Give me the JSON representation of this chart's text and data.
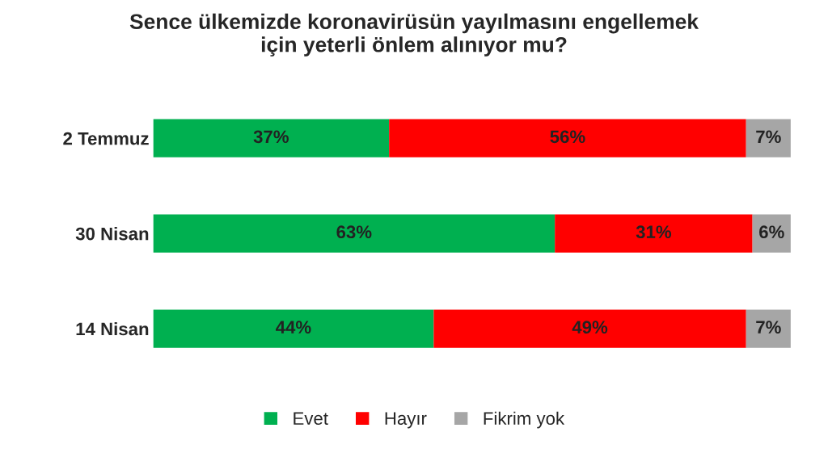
{
  "chart_data": {
    "type": "bar",
    "orientation": "horizontal",
    "stacked": true,
    "title": "Sence ülkemizde koronavirüsün yayılmasını engellemek\niçin yeterli önlem alınıyor mu?",
    "categories": [
      "2 Temmuz",
      "30 Nisan",
      "14 Nisan"
    ],
    "series": [
      {
        "name": "Evet",
        "color": "#00b050",
        "values": [
          37,
          63,
          44
        ],
        "value_labels": [
          "37%",
          "63%",
          "44%"
        ]
      },
      {
        "name": "Hayır",
        "color": "#ff0000",
        "values": [
          56,
          31,
          49
        ],
        "value_labels": [
          "56%",
          "31%",
          "49%"
        ]
      },
      {
        "name": "Fikrim yok",
        "color": "#a6a6a6",
        "values": [
          7,
          6,
          7
        ],
        "value_labels": [
          "7%",
          "6%",
          "7%"
        ]
      }
    ],
    "legend": "bottom",
    "grid": false
  }
}
